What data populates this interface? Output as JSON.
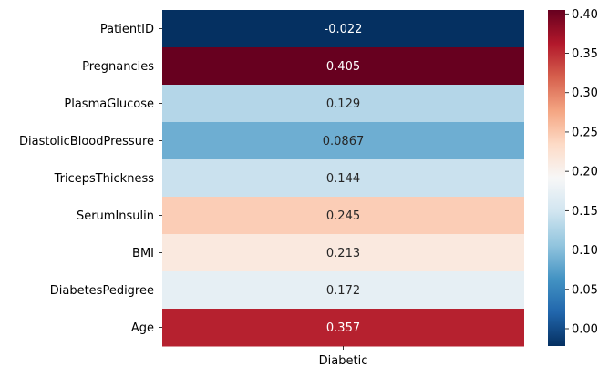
{
  "chart_data": {
    "type": "heatmap",
    "title": "",
    "xlabel": "",
    "ylabel": "",
    "columns": [
      "Diabetic"
    ],
    "rows": [
      "PatientID",
      "Pregnancies",
      "PlasmaGlucose",
      "DiastolicBloodPressure",
      "TricepsThickness",
      "SerumInsulin",
      "BMI",
      "DiabetesPedigree",
      "Age"
    ],
    "values": [
      -0.022,
      0.405,
      0.129,
      0.0867,
      0.144,
      0.245,
      0.213,
      0.172,
      0.357
    ],
    "value_labels": [
      "-0.022",
      "0.405",
      "0.129",
      "0.0867",
      "0.144",
      "0.245",
      "0.213",
      "0.172",
      "0.357"
    ],
    "colormap": "RdBu_r",
    "vmin": -0.022,
    "vmax": 0.405,
    "colorbar_ticks": [
      0.0,
      0.05,
      0.1,
      0.15,
      0.2,
      0.25,
      0.3,
      0.35,
      0.4
    ],
    "colorbar_tick_labels": [
      "0.00",
      "0.05",
      "0.10",
      "0.15",
      "0.20",
      "0.25",
      "0.30",
      "0.35",
      "0.40"
    ],
    "legend_position": "right"
  }
}
